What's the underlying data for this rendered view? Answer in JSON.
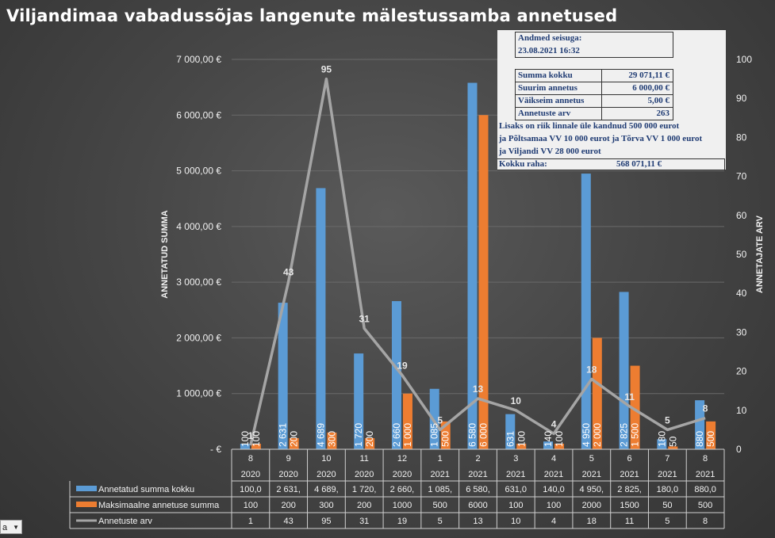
{
  "title": "Viljandimaa vabadussõjas langenute mälestussamba annetused",
  "info_panel": {
    "date_label": "Andmed seisuga:",
    "date_value": "23.08.2021 16:32",
    "stats": [
      {
        "label": "Summa kokku",
        "value": "29 071,11 €"
      },
      {
        "label": "Suurim annetus",
        "value": "6 000,00 €"
      },
      {
        "label": "Väikseim annetus",
        "value": "5,00 €"
      },
      {
        "label": "Annetuste arv",
        "value": "263"
      }
    ],
    "notes": [
      "Lisaks on riik linnale üle kandnud 500 000 eurot",
      "ja Põltsamaa VV 10 000 eurot ja Tõrva VV 1 000 eurot",
      "ja Viljandi VV 28 000 eurot"
    ],
    "total_label": "Kokku raha:",
    "total_value": "568 071,11 €"
  },
  "dropdown": {
    "value": "a"
  },
  "chart_data": {
    "type": "bar",
    "categories": [
      [
        "8",
        "2020"
      ],
      [
        "9",
        "2020"
      ],
      [
        "10",
        "2020"
      ],
      [
        "11",
        "2020"
      ],
      [
        "12",
        "2020"
      ],
      [
        "1",
        "2021"
      ],
      [
        "2",
        "2021"
      ],
      [
        "3",
        "2021"
      ],
      [
        "4",
        "2021"
      ],
      [
        "5",
        "2021"
      ],
      [
        "6",
        "2021"
      ],
      [
        "7",
        "2021"
      ],
      [
        "8",
        "2021"
      ]
    ],
    "ylabel": "ANNETATUD SUMMA",
    "y2label": "ANNETAJATE ARV",
    "ylim": [
      0,
      7000
    ],
    "y2lim": [
      0,
      100
    ],
    "yticks": [
      "-  €",
      "1 000,00 €",
      "2 000,00 €",
      "3 000,00 €",
      "4 000,00 €",
      "5 000,00 €",
      "6 000,00 €",
      "7 000,00 €"
    ],
    "y2ticks": [
      "0",
      "10",
      "20",
      "30",
      "40",
      "50",
      "60",
      "70",
      "80",
      "90",
      "100"
    ],
    "series": [
      {
        "name": "Annetatud summa kokku",
        "kind": "bar",
        "axis": "left",
        "color": "#5b9bd5",
        "values": [
          100,
          2631,
          4689,
          1720,
          2660,
          1085,
          6580,
          631,
          140,
          4950,
          2825,
          180,
          880
        ],
        "labels": [
          "100",
          "2 631",
          "4 689",
          "1 720",
          "2 660",
          "1 085",
          "6 580",
          "631",
          "140",
          "4 950",
          "2 825",
          "180",
          "880"
        ],
        "table": [
          "100,0",
          "2 631,",
          "4 689,",
          "1 720,",
          "2 660,",
          "1 085,",
          "6 580,",
          "631,0",
          "140,0",
          "4 950,",
          "2 825,",
          "180,0",
          "880,0"
        ]
      },
      {
        "name": "Maksimaalne annetuse summa",
        "kind": "bar",
        "axis": "left",
        "color": "#ed7d31",
        "values": [
          100,
          200,
          300,
          200,
          1000,
          500,
          6000,
          100,
          100,
          2000,
          1500,
          50,
          500
        ],
        "labels": [
          "100",
          "200",
          "300",
          "200",
          "1 000",
          "500",
          "6 000",
          "100",
          "100",
          "2 000",
          "1 500",
          "50",
          "500"
        ],
        "table": [
          "100",
          "200",
          "300",
          "200",
          "1000",
          "500",
          "6000",
          "100",
          "100",
          "2000",
          "1500",
          "50",
          "500"
        ]
      },
      {
        "name": "Annetuste arv",
        "kind": "line",
        "axis": "right",
        "color": "#a5a5a5",
        "values": [
          1,
          43,
          95,
          31,
          19,
          5,
          13,
          10,
          4,
          18,
          11,
          5,
          8
        ],
        "labels": [
          "1",
          "43",
          "95",
          "31",
          "19",
          "5",
          "13",
          "10",
          "4",
          "18",
          "11",
          "5",
          "8"
        ],
        "table": [
          "1",
          "43",
          "95",
          "31",
          "19",
          "5",
          "13",
          "10",
          "4",
          "18",
          "11",
          "5",
          "8"
        ]
      }
    ]
  }
}
